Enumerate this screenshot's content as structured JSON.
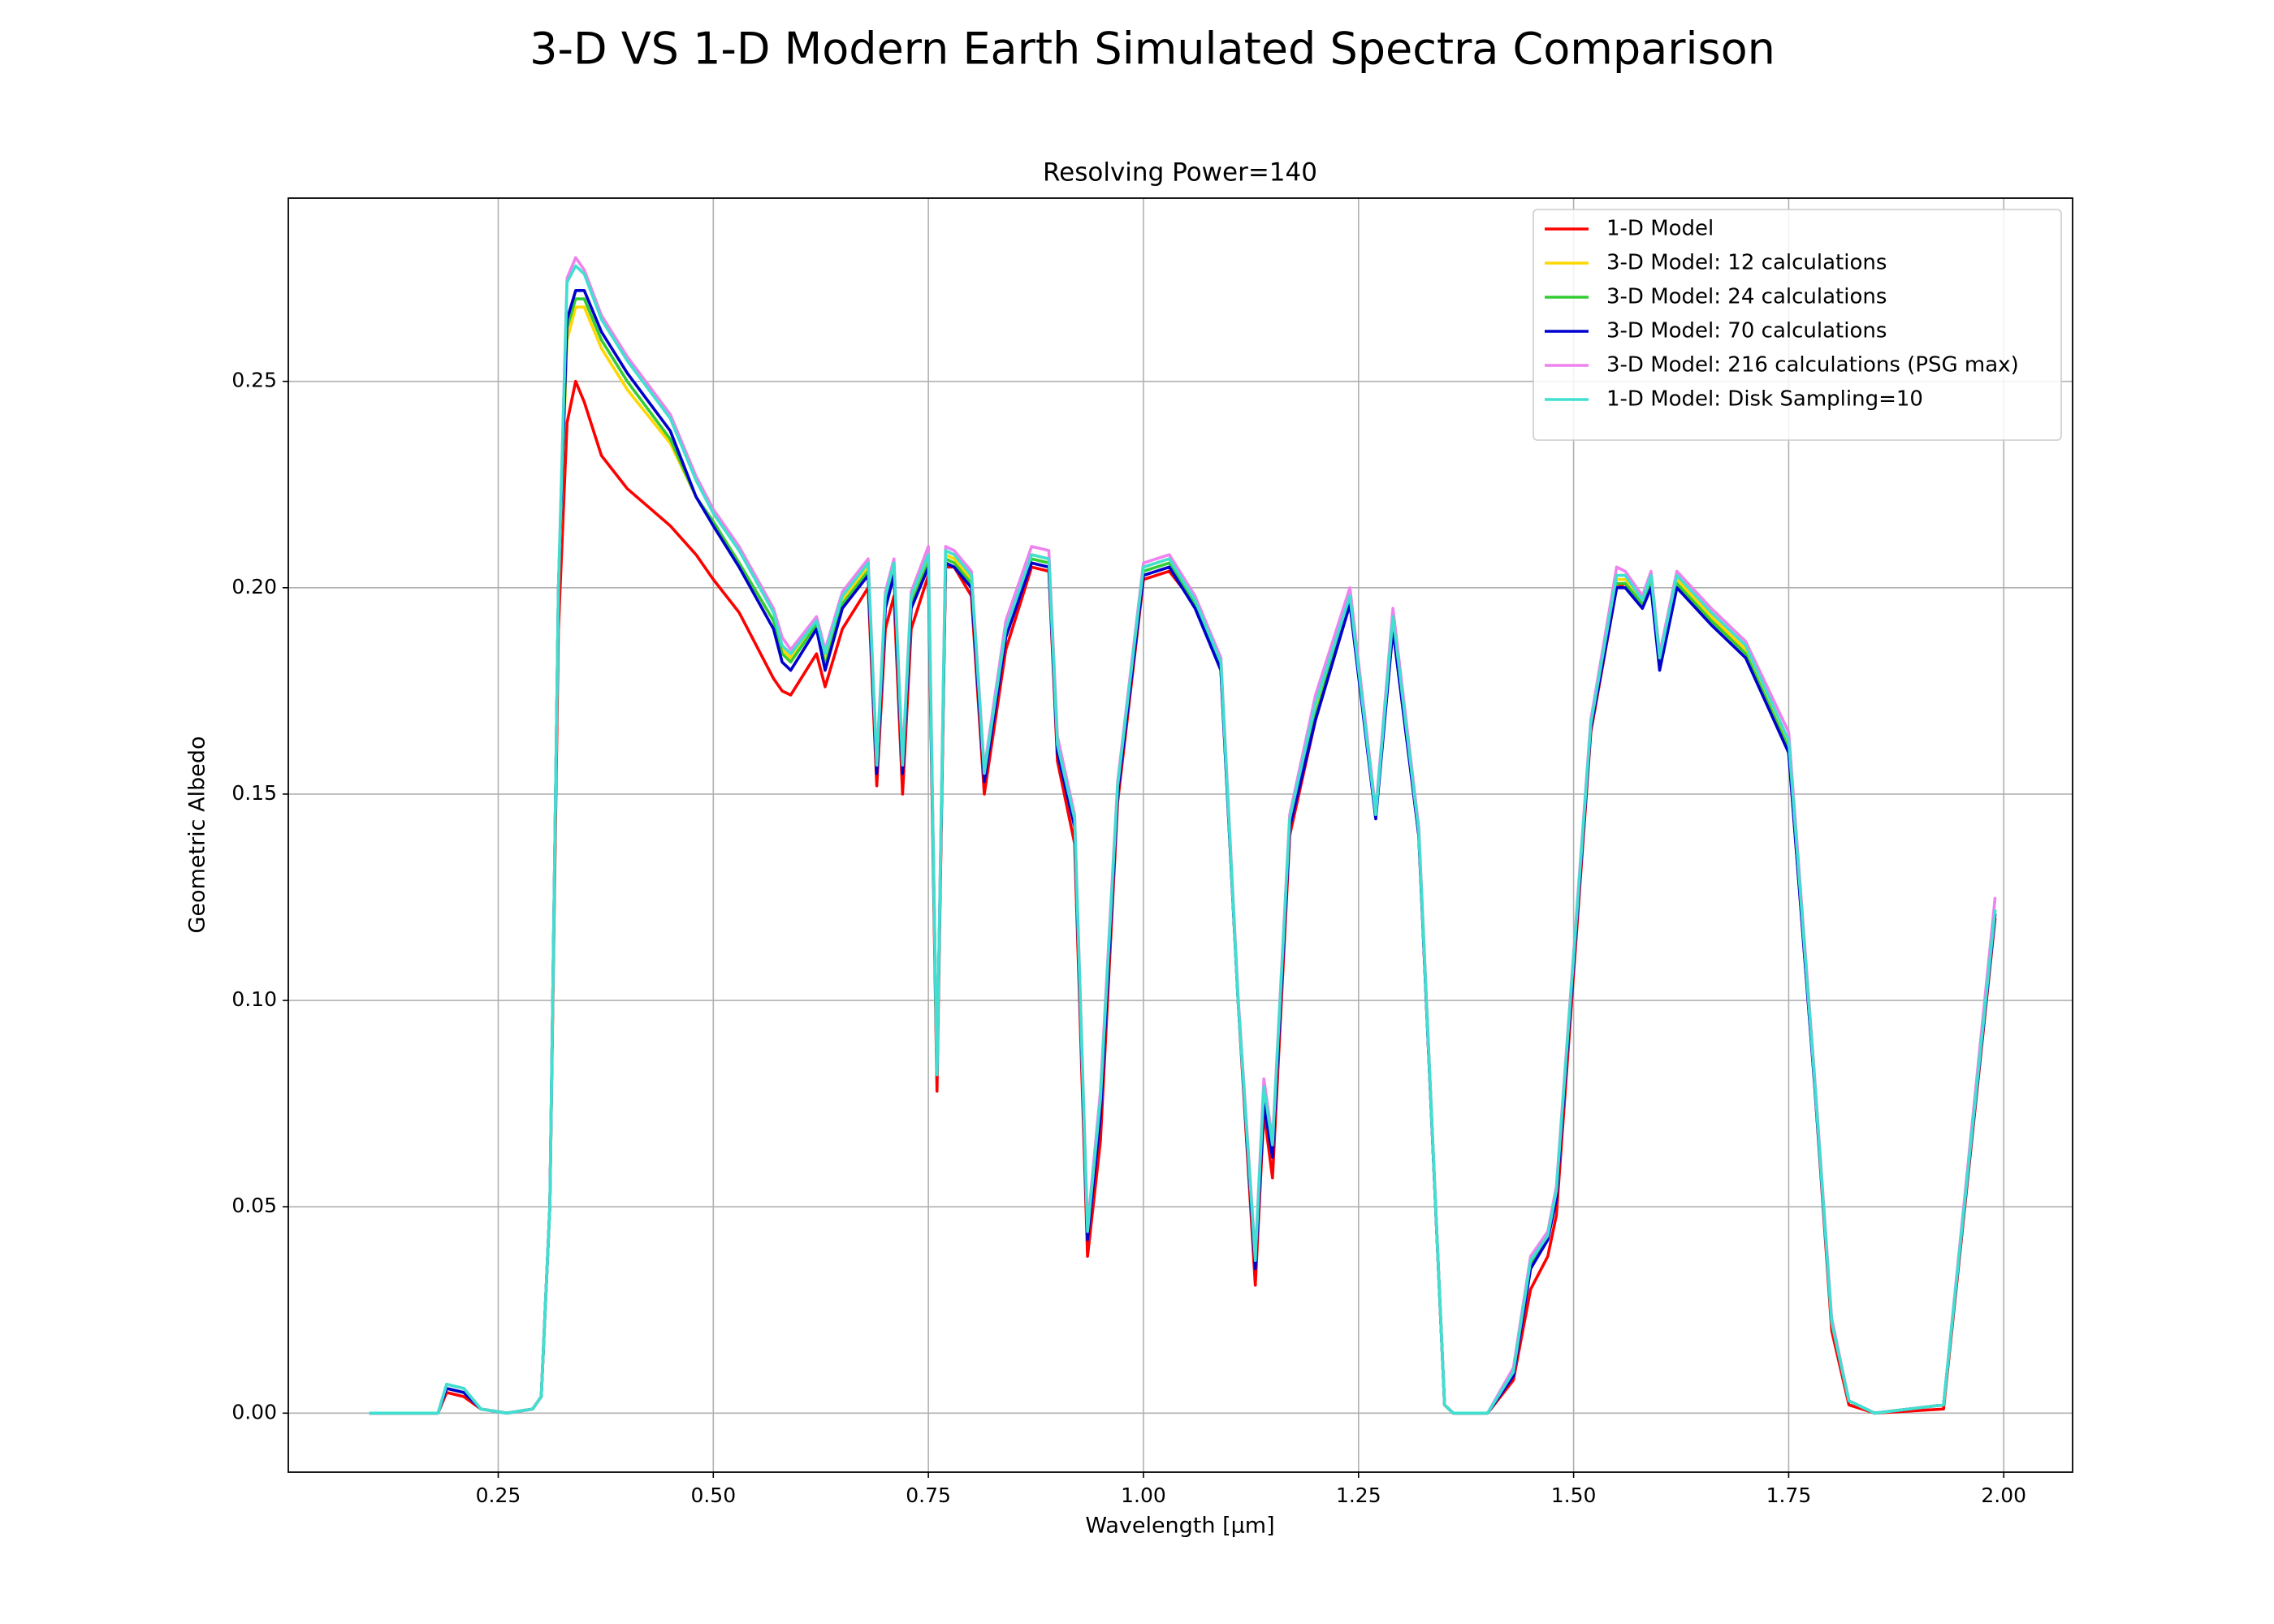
{
  "chart_data": {
    "type": "line",
    "title": "3-D VS 1-D Modern Earth Simulated Spectra Comparison",
    "subtitle": "Resolving Power=140",
    "x_label": "Wavelength [μm]",
    "y_label": "Geometric Albedo",
    "xlim": [
      0.006,
      2.08
    ],
    "ylim": [
      -0.0143,
      0.2944
    ],
    "xticks": [
      0.25,
      {
        "value": 0.5,
        "label": "0.50"
      },
      0.75,
      {
        "value": 1.0,
        "label": "1.00"
      },
      1.25,
      {
        "value": 1.5,
        "label": "1.50"
      },
      1.75,
      {
        "value": 2.0,
        "label": "2.00"
      }
    ],
    "yticks": [
      {
        "value": 0,
        "label": "0.00"
      },
      0.05,
      {
        "value": 0.1,
        "label": "0.10"
      },
      0.15,
      {
        "value": 0.2,
        "label": "0.20"
      },
      0.25
    ],
    "grid": true,
    "legend": "upper right",
    "x": [
      0.1,
      0.18,
      0.19,
      0.21,
      0.23,
      0.26,
      0.29,
      0.3,
      0.31,
      0.32,
      0.33,
      0.34,
      0.35,
      0.37,
      0.4,
      0.45,
      0.48,
      0.5,
      0.53,
      0.57,
      0.58,
      0.59,
      0.62,
      0.63,
      0.65,
      0.68,
      0.69,
      0.7,
      0.71,
      0.72,
      0.73,
      0.75,
      0.76,
      0.77,
      0.78,
      0.8,
      0.815,
      0.84,
      0.87,
      0.89,
      0.9,
      0.92,
      0.935,
      0.95,
      0.97,
      1.0,
      1.03,
      1.06,
      1.09,
      1.11,
      1.13,
      1.14,
      1.15,
      1.17,
      1.2,
      1.24,
      1.27,
      1.29,
      1.32,
      1.35,
      1.36,
      1.4,
      1.43,
      1.45,
      1.47,
      1.48,
      1.52,
      1.55,
      1.56,
      1.58,
      1.59,
      1.6,
      1.62,
      1.66,
      1.7,
      1.75,
      1.78,
      1.8,
      1.82,
      1.85,
      1.93,
      1.99
    ],
    "series": [
      {
        "name": "1-D Model",
        "color": "#ff0000",
        "values": [
          0,
          0,
          0.005,
          0.004,
          0.001,
          0,
          0.001,
          0.004,
          0.05,
          0.19,
          0.24,
          0.25,
          0.245,
          0.232,
          0.224,
          0.215,
          0.208,
          0.202,
          0.194,
          0.178,
          0.175,
          0.174,
          0.184,
          0.176,
          0.19,
          0.2,
          0.152,
          0.19,
          0.198,
          0.15,
          0.19,
          0.203,
          0.078,
          0.205,
          0.205,
          0.198,
          0.15,
          0.185,
          0.205,
          0.204,
          0.158,
          0.138,
          0.038,
          0.066,
          0.148,
          0.202,
          0.204,
          0.196,
          0.18,
          0.1,
          0.031,
          0.073,
          0.057,
          0.14,
          0.168,
          0.196,
          0.145,
          0.19,
          0.14,
          0.002,
          0,
          0,
          0.008,
          0.03,
          0.038,
          0.048,
          0.165,
          0.2,
          0.201,
          0.196,
          0.2,
          0.181,
          0.2,
          0.192,
          0.185,
          0.16,
          0.08,
          0.02,
          0.002,
          0,
          0.001,
          0.12
        ]
      },
      {
        "name": "3-D Model: 12 calculations",
        "color": "#ffd700",
        "values": [
          0,
          0,
          0.006,
          0.005,
          0.001,
          0,
          0.001,
          0.004,
          0.05,
          0.2,
          0.26,
          0.268,
          0.268,
          0.258,
          0.248,
          0.235,
          0.222,
          0.216,
          0.206,
          0.192,
          0.185,
          0.183,
          0.192,
          0.182,
          0.197,
          0.205,
          0.157,
          0.197,
          0.205,
          0.157,
          0.197,
          0.207,
          0.082,
          0.208,
          0.207,
          0.202,
          0.154,
          0.19,
          0.208,
          0.207,
          0.162,
          0.143,
          0.043,
          0.073,
          0.151,
          0.205,
          0.207,
          0.197,
          0.181,
          0.1,
          0.036,
          0.077,
          0.064,
          0.143,
          0.17,
          0.198,
          0.145,
          0.192,
          0.141,
          0.002,
          0,
          0,
          0.01,
          0.036,
          0.043,
          0.053,
          0.167,
          0.202,
          0.202,
          0.197,
          0.202,
          0.182,
          0.202,
          0.193,
          0.185,
          0.162,
          0.081,
          0.022,
          0.003,
          0,
          0.002,
          0.122
        ]
      },
      {
        "name": "3-D Model: 24 calculations",
        "color": "#32cd32",
        "values": [
          0,
          0,
          0.006,
          0.005,
          0.001,
          0,
          0.001,
          0.004,
          0.05,
          0.2,
          0.263,
          0.27,
          0.27,
          0.26,
          0.25,
          0.236,
          0.222,
          0.216,
          0.206,
          0.192,
          0.184,
          0.182,
          0.191,
          0.181,
          0.196,
          0.204,
          0.156,
          0.196,
          0.204,
          0.156,
          0.196,
          0.206,
          0.082,
          0.207,
          0.206,
          0.201,
          0.154,
          0.189,
          0.207,
          0.206,
          0.161,
          0.143,
          0.043,
          0.073,
          0.151,
          0.204,
          0.206,
          0.196,
          0.181,
          0.1,
          0.036,
          0.076,
          0.063,
          0.143,
          0.169,
          0.197,
          0.145,
          0.191,
          0.141,
          0.002,
          0,
          0,
          0.01,
          0.036,
          0.043,
          0.053,
          0.167,
          0.201,
          0.201,
          0.196,
          0.201,
          0.181,
          0.201,
          0.192,
          0.184,
          0.161,
          0.081,
          0.022,
          0.003,
          0,
          0.002,
          0.121
        ]
      },
      {
        "name": "3-D Model: 70 calculations",
        "color": "#0000cd",
        "values": [
          0,
          0,
          0.006,
          0.005,
          0.001,
          0,
          0.001,
          0.004,
          0.05,
          0.2,
          0.265,
          0.272,
          0.272,
          0.262,
          0.252,
          0.238,
          0.222,
          0.215,
          0.205,
          0.19,
          0.182,
          0.18,
          0.19,
          0.18,
          0.195,
          0.203,
          0.155,
          0.195,
          0.203,
          0.155,
          0.195,
          0.205,
          0.082,
          0.206,
          0.205,
          0.2,
          0.153,
          0.188,
          0.206,
          0.205,
          0.16,
          0.142,
          0.042,
          0.072,
          0.15,
          0.203,
          0.205,
          0.195,
          0.18,
          0.1,
          0.035,
          0.075,
          0.062,
          0.142,
          0.168,
          0.196,
          0.144,
          0.19,
          0.14,
          0.002,
          0,
          0,
          0.009,
          0.035,
          0.042,
          0.052,
          0.166,
          0.2,
          0.2,
          0.195,
          0.2,
          0.18,
          0.2,
          0.191,
          0.183,
          0.16,
          0.08,
          0.022,
          0.003,
          0,
          0.002,
          0.121
        ]
      },
      {
        "name": "3-D Model: 216 calculations (PSG max)",
        "color": "#ee82ee",
        "values": [
          0,
          0,
          0.007,
          0.006,
          0.001,
          0,
          0.001,
          0.004,
          0.05,
          0.2,
          0.275,
          0.28,
          0.277,
          0.266,
          0.256,
          0.242,
          0.227,
          0.219,
          0.21,
          0.195,
          0.188,
          0.185,
          0.193,
          0.185,
          0.199,
          0.207,
          0.158,
          0.199,
          0.207,
          0.158,
          0.199,
          0.21,
          0.083,
          0.21,
          0.209,
          0.204,
          0.156,
          0.192,
          0.21,
          0.209,
          0.164,
          0.145,
          0.045,
          0.078,
          0.153,
          0.206,
          0.208,
          0.198,
          0.183,
          0.101,
          0.038,
          0.081,
          0.066,
          0.145,
          0.174,
          0.2,
          0.146,
          0.195,
          0.142,
          0.002,
          0,
          0,
          0.011,
          0.038,
          0.044,
          0.055,
          0.168,
          0.205,
          0.204,
          0.198,
          0.204,
          0.184,
          0.204,
          0.195,
          0.187,
          0.165,
          0.082,
          0.023,
          0.003,
          0,
          0.002,
          0.125
        ]
      },
      {
        "name": "1-D Model: Disk Sampling=10",
        "color": "#40e0d0",
        "values": [
          0,
          0,
          0.007,
          0.006,
          0.001,
          0,
          0.001,
          0.004,
          0.05,
          0.2,
          0.274,
          0.278,
          0.276,
          0.265,
          0.255,
          0.241,
          0.226,
          0.218,
          0.209,
          0.194,
          0.186,
          0.184,
          0.192,
          0.184,
          0.198,
          0.206,
          0.157,
          0.198,
          0.206,
          0.157,
          0.198,
          0.208,
          0.082,
          0.209,
          0.208,
          0.203,
          0.155,
          0.19,
          0.208,
          0.207,
          0.162,
          0.144,
          0.044,
          0.076,
          0.152,
          0.205,
          0.207,
          0.197,
          0.182,
          0.1,
          0.037,
          0.079,
          0.065,
          0.144,
          0.172,
          0.198,
          0.145,
          0.193,
          0.141,
          0.002,
          0,
          0,
          0.01,
          0.037,
          0.043,
          0.054,
          0.167,
          0.203,
          0.203,
          0.197,
          0.203,
          0.183,
          0.203,
          0.194,
          0.186,
          0.163,
          0.081,
          0.022,
          0.003,
          0,
          0.002,
          0.122
        ]
      }
    ]
  }
}
